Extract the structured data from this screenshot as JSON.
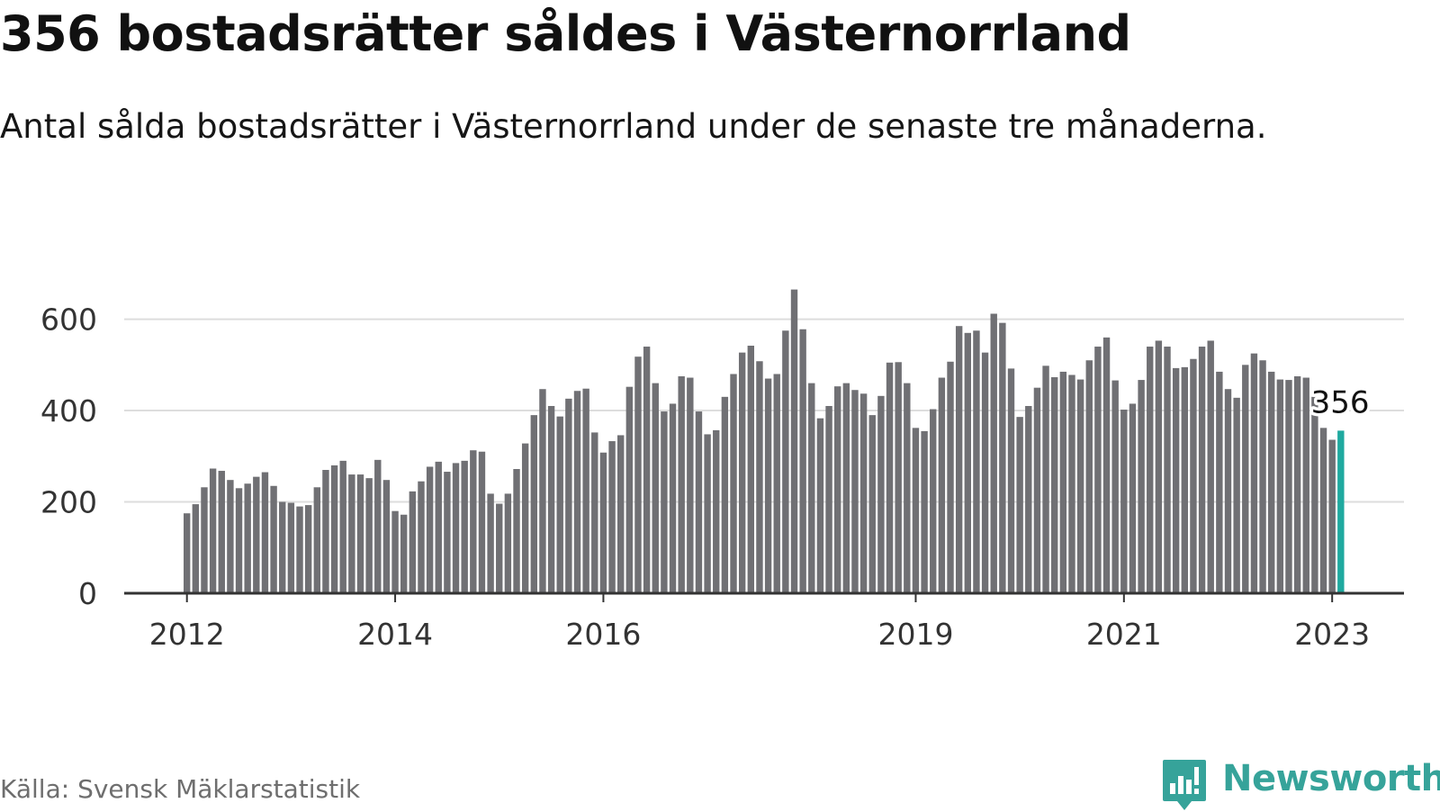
{
  "title": "356 bostadsrätter såldes i Västernorrland",
  "subtitle": "Antal sålda bostadsrätter i Västernorrland under de senaste tre månaderna.",
  "source": "Källa: Svensk Mäklarstatistik",
  "brand": {
    "name": "Newsworthy",
    "logo_icon": "bar-chart-speech-bubble-icon",
    "color": "#36a39a"
  },
  "colors": {
    "bar": "#707074",
    "highlight": "#1fa99f",
    "grid": "#dddddd",
    "axis": "#333333"
  },
  "chart_data": {
    "type": "bar",
    "x_unit": "month",
    "x_start": "2012-01",
    "x_ticks": [
      "2012",
      "2014",
      "2016",
      "2019",
      "2021",
      "2023"
    ],
    "y_ticks": [
      0,
      200,
      400,
      600
    ],
    "ylim": [
      0,
      680
    ],
    "grid": true,
    "highlight_label": "356",
    "values": [
      175,
      195,
      232,
      273,
      268,
      248,
      230,
      240,
      255,
      265,
      235,
      200,
      198,
      190,
      193,
      232,
      270,
      280,
      290,
      260,
      260,
      252,
      292,
      248,
      180,
      172,
      223,
      245,
      277,
      288,
      266,
      285,
      290,
      313,
      310,
      218,
      196,
      218,
      272,
      328,
      390,
      447,
      410,
      387,
      426,
      443,
      448,
      352,
      308,
      333,
      346,
      452,
      518,
      540,
      460,
      398,
      415,
      475,
      472,
      398,
      348,
      357,
      430,
      480,
      527,
      542,
      508,
      470,
      480,
      575,
      665,
      578,
      460,
      383,
      410,
      453,
      460,
      445,
      437,
      390,
      432,
      505,
      506,
      460,
      362,
      355,
      403,
      472,
      507,
      585,
      570,
      575,
      527,
      612,
      592,
      492,
      386,
      410,
      450,
      498,
      473,
      485,
      478,
      468,
      510,
      540,
      560,
      466,
      402,
      415,
      467,
      540,
      553,
      540,
      493,
      495,
      513,
      540,
      553,
      485,
      447,
      428,
      500,
      525,
      510,
      485,
      468,
      467,
      475,
      472,
      430,
      362,
      336,
      356
    ]
  }
}
